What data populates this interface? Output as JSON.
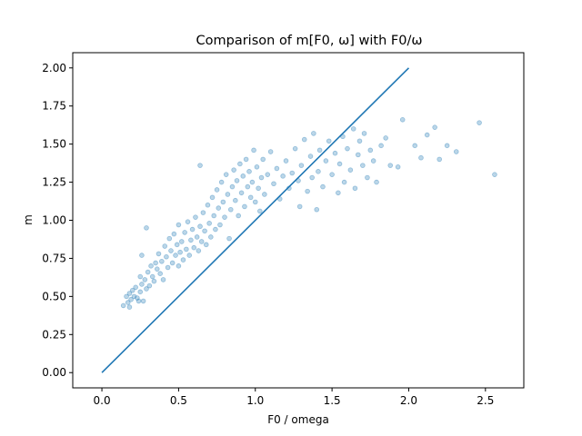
{
  "chart_data": {
    "type": "scatter",
    "title": "Comparison of m[F0, ω] with F0/ω",
    "xlabel": "F0 / omega",
    "ylabel": "m",
    "xlim": [
      -0.19,
      2.75
    ],
    "ylim": [
      -0.1,
      2.1
    ],
    "x_ticks": [
      0.0,
      0.5,
      1.0,
      1.5,
      2.0,
      2.5
    ],
    "x_tick_labels": [
      "0.0",
      "0.5",
      "1.0",
      "1.5",
      "2.0",
      "2.5"
    ],
    "y_ticks": [
      0.0,
      0.25,
      0.5,
      0.75,
      1.0,
      1.25,
      1.5,
      1.75,
      2.0
    ],
    "y_tick_labels": [
      "0.00",
      "0.25",
      "0.50",
      "0.75",
      "1.00",
      "1.25",
      "1.50",
      "1.75",
      "2.00"
    ],
    "grid": false,
    "colors": {
      "series": "#1f77b4",
      "axes": "#000000",
      "background": "#ffffff"
    },
    "series": [
      {
        "type": "scatter",
        "alpha": 0.3,
        "points": [
          [
            0.14,
            0.44
          ],
          [
            0.16,
            0.5
          ],
          [
            0.17,
            0.46
          ],
          [
            0.18,
            0.43
          ],
          [
            0.18,
            0.52
          ],
          [
            0.19,
            0.48
          ],
          [
            0.2,
            0.54
          ],
          [
            0.21,
            0.5
          ],
          [
            0.22,
            0.56
          ],
          [
            0.23,
            0.49
          ],
          [
            0.24,
            0.47
          ],
          [
            0.25,
            0.63
          ],
          [
            0.25,
            0.53
          ],
          [
            0.26,
            0.77
          ],
          [
            0.26,
            0.58
          ],
          [
            0.27,
            0.47
          ],
          [
            0.28,
            0.61
          ],
          [
            0.29,
            0.55
          ],
          [
            0.29,
            0.95
          ],
          [
            0.3,
            0.66
          ],
          [
            0.31,
            0.57
          ],
          [
            0.32,
            0.7
          ],
          [
            0.33,
            0.63
          ],
          [
            0.34,
            0.6
          ],
          [
            0.35,
            0.72
          ],
          [
            0.36,
            0.68
          ],
          [
            0.37,
            0.78
          ],
          [
            0.38,
            0.65
          ],
          [
            0.39,
            0.73
          ],
          [
            0.4,
            0.61
          ],
          [
            0.41,
            0.83
          ],
          [
            0.42,
            0.76
          ],
          [
            0.43,
            0.69
          ],
          [
            0.44,
            0.88
          ],
          [
            0.45,
            0.8
          ],
          [
            0.46,
            0.72
          ],
          [
            0.47,
            0.91
          ],
          [
            0.48,
            0.77
          ],
          [
            0.49,
            0.84
          ],
          [
            0.5,
            0.7
          ],
          [
            0.5,
            0.97
          ],
          [
            0.51,
            0.79
          ],
          [
            0.52,
            0.86
          ],
          [
            0.53,
            0.74
          ],
          [
            0.54,
            0.92
          ],
          [
            0.55,
            0.81
          ],
          [
            0.56,
            0.99
          ],
          [
            0.57,
            0.77
          ],
          [
            0.58,
            0.87
          ],
          [
            0.59,
            0.94
          ],
          [
            0.6,
            0.82
          ],
          [
            0.61,
            1.02
          ],
          [
            0.62,
            0.89
          ],
          [
            0.63,
            0.8
          ],
          [
            0.64,
            1.36
          ],
          [
            0.64,
            0.96
          ],
          [
            0.65,
            0.86
          ],
          [
            0.66,
            1.05
          ],
          [
            0.67,
            0.93
          ],
          [
            0.68,
            0.84
          ],
          [
            0.69,
            1.1
          ],
          [
            0.7,
            0.98
          ],
          [
            0.71,
            0.89
          ],
          [
            0.72,
            1.15
          ],
          [
            0.73,
            1.03
          ],
          [
            0.74,
            0.94
          ],
          [
            0.75,
            1.2
          ],
          [
            0.76,
            1.08
          ],
          [
            0.77,
            0.97
          ],
          [
            0.78,
            1.25
          ],
          [
            0.79,
            1.12
          ],
          [
            0.8,
            1.02
          ],
          [
            0.81,
            1.3
          ],
          [
            0.82,
            1.17
          ],
          [
            0.83,
            0.88
          ],
          [
            0.84,
            1.07
          ],
          [
            0.85,
            1.22
          ],
          [
            0.86,
            1.33
          ],
          [
            0.87,
            1.13
          ],
          [
            0.88,
            1.26
          ],
          [
            0.89,
            1.03
          ],
          [
            0.9,
            1.37
          ],
          [
            0.91,
            1.18
          ],
          [
            0.92,
            1.29
          ],
          [
            0.93,
            1.09
          ],
          [
            0.94,
            1.4
          ],
          [
            0.95,
            1.22
          ],
          [
            0.96,
            1.32
          ],
          [
            0.97,
            1.15
          ],
          [
            0.98,
            1.25
          ],
          [
            0.99,
            1.46
          ],
          [
            1.0,
            1.12
          ],
          [
            1.01,
            1.35
          ],
          [
            1.02,
            1.21
          ],
          [
            1.03,
            1.06
          ],
          [
            1.04,
            1.28
          ],
          [
            1.05,
            1.4
          ],
          [
            1.06,
            1.17
          ],
          [
            1.08,
            1.3
          ],
          [
            1.1,
            1.45
          ],
          [
            1.12,
            1.24
          ],
          [
            1.14,
            1.34
          ],
          [
            1.16,
            1.14
          ],
          [
            1.18,
            1.29
          ],
          [
            1.2,
            1.39
          ],
          [
            1.22,
            1.21
          ],
          [
            1.24,
            1.31
          ],
          [
            1.26,
            1.47
          ],
          [
            1.28,
            1.26
          ],
          [
            1.29,
            1.09
          ],
          [
            1.3,
            1.36
          ],
          [
            1.32,
            1.53
          ],
          [
            1.34,
            1.19
          ],
          [
            1.36,
            1.42
          ],
          [
            1.37,
            1.28
          ],
          [
            1.38,
            1.57
          ],
          [
            1.4,
            1.07
          ],
          [
            1.41,
            1.32
          ],
          [
            1.42,
            1.46
          ],
          [
            1.44,
            1.22
          ],
          [
            1.46,
            1.39
          ],
          [
            1.48,
            1.52
          ],
          [
            1.5,
            1.3
          ],
          [
            1.52,
            1.44
          ],
          [
            1.54,
            1.18
          ],
          [
            1.55,
            1.37
          ],
          [
            1.57,
            1.55
          ],
          [
            1.58,
            1.25
          ],
          [
            1.6,
            1.47
          ],
          [
            1.62,
            1.33
          ],
          [
            1.64,
            1.6
          ],
          [
            1.65,
            1.21
          ],
          [
            1.67,
            1.43
          ],
          [
            1.68,
            1.52
          ],
          [
            1.7,
            1.36
          ],
          [
            1.71,
            1.57
          ],
          [
            1.73,
            1.28
          ],
          [
            1.75,
            1.46
          ],
          [
            1.77,
            1.39
          ],
          [
            1.79,
            1.25
          ],
          [
            1.82,
            1.49
          ],
          [
            1.85,
            1.54
          ],
          [
            1.88,
            1.36
          ],
          [
            1.93,
            1.35
          ],
          [
            1.96,
            1.66
          ],
          [
            2.04,
            1.49
          ],
          [
            2.08,
            1.41
          ],
          [
            2.12,
            1.56
          ],
          [
            2.17,
            1.61
          ],
          [
            2.2,
            1.4
          ],
          [
            2.25,
            1.49
          ],
          [
            2.31,
            1.45
          ],
          [
            2.46,
            1.64
          ],
          [
            2.56,
            1.3
          ]
        ]
      },
      {
        "type": "line",
        "points": [
          [
            0.0,
            0.0
          ],
          [
            2.0,
            2.0
          ]
        ]
      }
    ]
  }
}
